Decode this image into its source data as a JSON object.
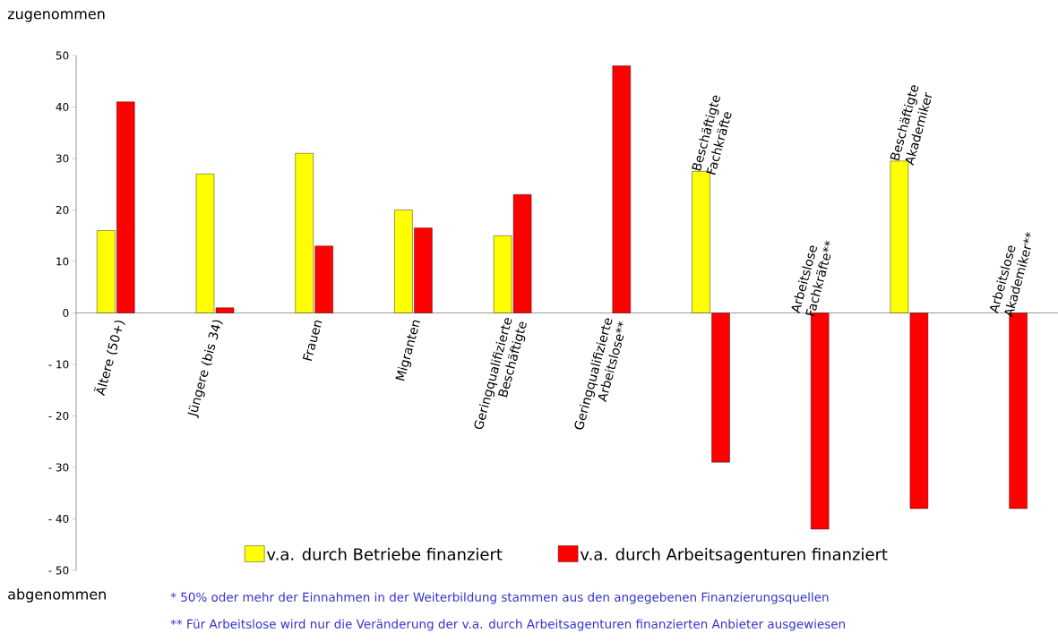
{
  "chart_data": {
    "type": "bar",
    "categories": [
      "Ältere (50+)",
      "Jüngere (bis 34)",
      "Frauen",
      "Migranten",
      "Geringqualifizierte Beschäftigte",
      "Geringqualifizierte Arbeitslose**",
      "Beschäftigte Fachkräfte",
      "Arbeitslose Fachkräfte**",
      "Beschäftigte Akademiker",
      "Arbeitslose Akademiker**"
    ],
    "series": [
      {
        "name": "v.a. durch Betriebe finanziert",
        "color": "#ffff00",
        "values": [
          16,
          27,
          31,
          20,
          15,
          null,
          27.5,
          null,
          29.5,
          null
        ]
      },
      {
        "name": "v.a. durch Arbeitsagenturen finanziert",
        "color": "#ff0000",
        "values": [
          41,
          1,
          13,
          16.5,
          23,
          48,
          -29,
          -42,
          -38,
          -38
        ]
      }
    ],
    "ylim": [
      -50,
      50
    ],
    "yticks": [
      50,
      40,
      30,
      20,
      10,
      0,
      {
        "value": -10,
        "label": "- 10"
      },
      {
        "value": -20,
        "label": "- 20"
      },
      {
        "value": -30,
        "label": "- 30"
      },
      {
        "value": -40,
        "label": "- 40"
      },
      {
        "value": -50,
        "label": "- 50"
      }
    ],
    "grid": false,
    "legend": "bottom",
    "annotations": [
      "zugenommen",
      "abgenommen",
      "* 50% oder mehr der Einnahmen in der Weiterbildung stammen aus den angegebenen Finanzierungsquellen",
      "** Für Arbeitslose wird nur die Veränderung der v.a. durch Arbeitsagenturen finanzierten Anbieter ausgewiesen"
    ]
  }
}
